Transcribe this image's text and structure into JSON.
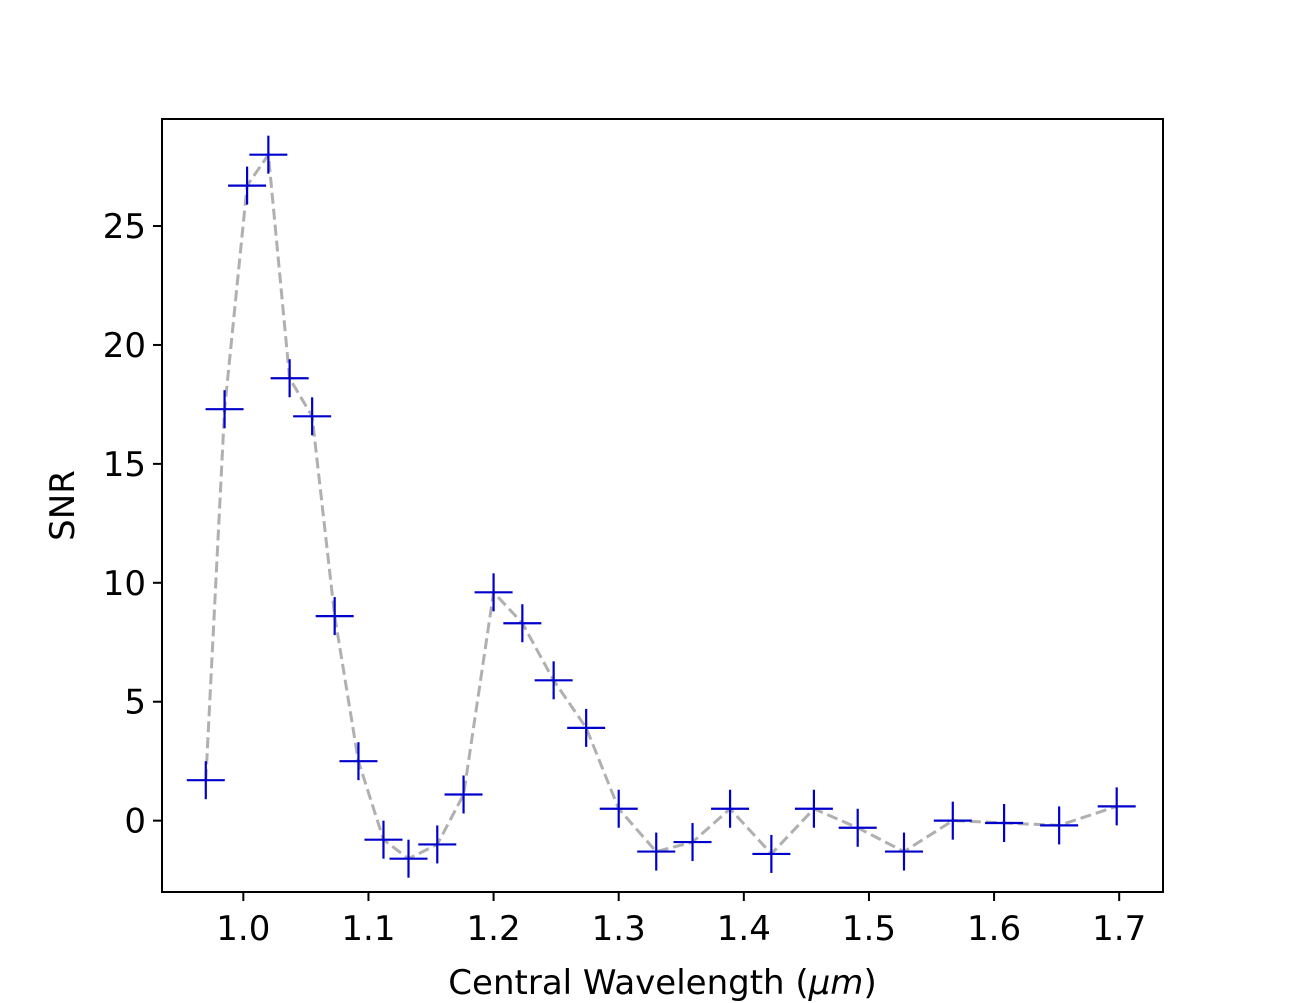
{
  "chart_data": {
    "type": "line",
    "xlabel_text": "Central Wavelength (",
    "xlabel_unit": "μm",
    "xlabel_close": ")",
    "ylabel": "SNR",
    "xlim": [
      0.935,
      1.735
    ],
    "ylim": [
      -3.0,
      29.5
    ],
    "xticks": [
      1.0,
      1.1,
      1.2,
      1.3,
      1.4,
      1.5,
      1.6,
      1.7
    ],
    "xtick_labels": [
      "1.0",
      "1.1",
      "1.2",
      "1.3",
      "1.4",
      "1.5",
      "1.6",
      "1.7"
    ],
    "yticks": [
      0,
      5,
      10,
      15,
      20,
      25
    ],
    "ytick_labels": [
      "0",
      "5",
      "10",
      "15",
      "20",
      "25"
    ],
    "grid": false,
    "legend": "none",
    "series": [
      {
        "marker": "plus",
        "marker_color": "#0000cc",
        "line_style": "dashed",
        "line_color": "#b0b0b0",
        "x": [
          0.97,
          0.985,
          1.003,
          1.02,
          1.037,
          1.055,
          1.073,
          1.092,
          1.112,
          1.132,
          1.155,
          1.176,
          1.2,
          1.223,
          1.248,
          1.274,
          1.3,
          1.33,
          1.359,
          1.389,
          1.422,
          1.456,
          1.491,
          1.528,
          1.567,
          1.608,
          1.652,
          1.698
        ],
        "y": [
          1.7,
          17.3,
          26.7,
          28.0,
          18.6,
          17.0,
          8.6,
          2.5,
          -0.8,
          -1.6,
          -1.0,
          1.1,
          9.6,
          8.3,
          5.9,
          3.9,
          0.5,
          -1.3,
          -0.9,
          0.5,
          -1.4,
          0.5,
          -0.3,
          -1.3,
          0.0,
          -0.1,
          -0.2,
          0.6
        ]
      }
    ]
  }
}
